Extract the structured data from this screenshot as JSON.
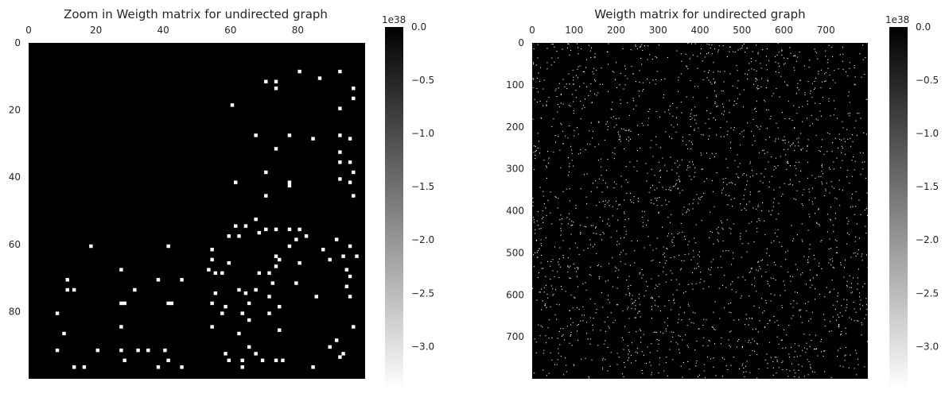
{
  "chart_data": [
    {
      "type": "heatmap",
      "title": "Zoom in Weigth matrix for undirected graph",
      "xlim": [
        0,
        100
      ],
      "ylim": [
        0,
        100
      ],
      "x_ticks": [
        0,
        20,
        40,
        60,
        80
      ],
      "y_ticks": [
        0,
        20,
        40,
        60,
        80
      ],
      "x_tick_labels": [
        "0",
        "20",
        "40",
        "60",
        "80"
      ],
      "y_tick_labels": [
        "0",
        "20",
        "40",
        "60",
        "80"
      ],
      "x_axis_position": "top",
      "grid": false,
      "colormap": "gray",
      "background_value": 0.0,
      "marked_value": -3.4e+38,
      "colorbar": {
        "range": [
          -3.4e+38,
          0.0
        ],
        "offset_label": "1e38",
        "ticks": [
          0.0,
          -0.5,
          -1.0,
          -1.5,
          -2.0,
          -2.5,
          -3.0
        ],
        "tick_labels": [
          "0.0",
          "−0.5",
          "−1.0",
          "−1.5",
          "−2.0",
          "−2.5",
          "−3.0"
        ]
      },
      "nonzero_cells": [
        [
          80,
          8
        ],
        [
          92,
          8
        ],
        [
          70,
          11
        ],
        [
          73,
          11
        ],
        [
          86,
          10
        ],
        [
          73,
          13
        ],
        [
          96,
          13
        ],
        [
          96,
          16
        ],
        [
          60,
          18
        ],
        [
          92,
          19
        ],
        [
          67,
          27
        ],
        [
          77,
          27
        ],
        [
          84,
          28
        ],
        [
          92,
          27
        ],
        [
          95,
          28
        ],
        [
          73,
          31
        ],
        [
          92,
          32
        ],
        [
          92,
          35
        ],
        [
          95,
          35
        ],
        [
          70,
          38
        ],
        [
          96,
          38
        ],
        [
          61,
          41
        ],
        [
          77,
          41
        ],
        [
          92,
          40
        ],
        [
          95,
          41
        ],
        [
          77,
          42
        ],
        [
          70,
          45
        ],
        [
          96,
          45
        ],
        [
          67,
          52
        ],
        [
          61,
          54
        ],
        [
          64,
          54
        ],
        [
          70,
          55
        ],
        [
          77,
          55
        ],
        [
          73,
          55
        ],
        [
          80,
          55
        ],
        [
          59,
          57
        ],
        [
          62,
          57
        ],
        [
          68,
          56
        ],
        [
          82,
          57
        ],
        [
          79,
          58
        ],
        [
          91,
          58
        ],
        [
          18,
          60
        ],
        [
          41,
          60
        ],
        [
          77,
          60
        ],
        [
          87,
          61
        ],
        [
          95,
          60
        ],
        [
          54,
          61
        ],
        [
          73,
          63
        ],
        [
          93,
          63
        ],
        [
          97,
          63
        ],
        [
          54,
          64
        ],
        [
          74,
          64
        ],
        [
          80,
          65
        ],
        [
          89,
          64
        ],
        [
          59,
          65
        ],
        [
          73,
          66
        ],
        [
          27,
          67
        ],
        [
          53,
          67
        ],
        [
          94,
          67
        ],
        [
          68,
          68
        ],
        [
          55,
          68
        ],
        [
          57,
          68
        ],
        [
          71,
          68
        ],
        [
          95,
          69
        ],
        [
          11,
          70
        ],
        [
          38,
          70
        ],
        [
          45,
          70
        ],
        [
          72,
          71
        ],
        [
          79,
          71
        ],
        [
          11,
          73
        ],
        [
          13,
          73
        ],
        [
          31,
          73
        ],
        [
          62,
          73
        ],
        [
          67,
          73
        ],
        [
          94,
          72
        ],
        [
          64,
          74
        ],
        [
          55,
          74
        ],
        [
          71,
          75
        ],
        [
          95,
          75
        ],
        [
          85,
          75
        ],
        [
          27,
          77
        ],
        [
          28,
          77
        ],
        [
          41,
          77
        ],
        [
          42,
          77
        ],
        [
          65,
          77
        ],
        [
          58,
          78
        ],
        [
          54,
          77
        ],
        [
          74,
          78
        ],
        [
          8,
          80
        ],
        [
          57,
          80
        ],
        [
          63,
          80
        ],
        [
          71,
          80
        ],
        [
          65,
          82
        ],
        [
          27,
          84
        ],
        [
          54,
          84
        ],
        [
          96,
          84
        ],
        [
          74,
          85
        ],
        [
          10,
          86
        ],
        [
          62,
          86
        ],
        [
          91,
          88
        ],
        [
          89,
          90
        ],
        [
          65,
          90
        ],
        [
          8,
          91
        ],
        [
          20,
          91
        ],
        [
          27,
          91
        ],
        [
          32,
          91
        ],
        [
          35,
          91
        ],
        [
          40,
          91
        ],
        [
          58,
          92
        ],
        [
          67,
          92
        ],
        [
          93,
          92
        ],
        [
          92,
          93
        ],
        [
          28,
          94
        ],
        [
          41,
          94
        ],
        [
          63,
          94
        ],
        [
          59,
          94
        ],
        [
          69,
          94
        ],
        [
          73,
          94
        ],
        [
          75,
          94
        ],
        [
          13,
          96
        ],
        [
          16,
          96
        ],
        [
          38,
          96
        ],
        [
          45,
          96
        ],
        [
          63,
          96
        ],
        [
          84,
          96
        ]
      ]
    },
    {
      "type": "heatmap",
      "title": "Weigth matrix for undirected graph",
      "xlim": [
        0,
        800
      ],
      "ylim": [
        0,
        800
      ],
      "x_ticks": [
        0,
        100,
        200,
        300,
        400,
        500,
        600,
        700
      ],
      "y_ticks": [
        0,
        100,
        200,
        300,
        400,
        500,
        600,
        700
      ],
      "x_tick_labels": [
        "0",
        "100",
        "200",
        "300",
        "400",
        "500",
        "600",
        "700"
      ],
      "y_tick_labels": [
        "0",
        "100",
        "200",
        "300",
        "400",
        "500",
        "600",
        "700"
      ],
      "x_axis_position": "top",
      "grid": false,
      "colormap": "gray",
      "background_value": 0.0,
      "marked_value": -3.4e+38,
      "density": "sparse scattered white entries across the full matrix",
      "colorbar": {
        "range": [
          -3.4e+38,
          0.0
        ],
        "offset_label": "1e38",
        "ticks": [
          0.0,
          -0.5,
          -1.0,
          -1.5,
          -2.0,
          -2.5,
          -3.0
        ],
        "tick_labels": [
          "0.0",
          "−0.5",
          "−1.0",
          "−1.5",
          "−2.0",
          "−2.5",
          "−3.0"
        ]
      }
    }
  ]
}
